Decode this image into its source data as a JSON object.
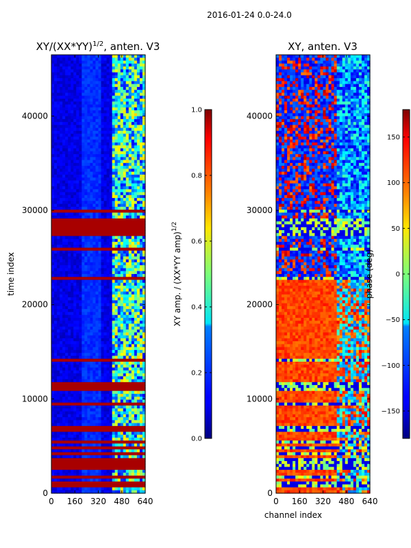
{
  "suptitle": "2016-01-24 0.0-24.0",
  "chart_data": [
    {
      "type": "heatmap",
      "title": "XY/(XX*YY)",
      "title_superscript": "1/2",
      "title_suffix": ", anten. V3",
      "xlabel": "",
      "ylabel": "time index",
      "xlim": [
        0,
        640
      ],
      "ylim": [
        0,
        46500
      ],
      "xticks": [
        0,
        160,
        320,
        480,
        640
      ],
      "yticks": [
        0,
        10000,
        20000,
        30000,
        40000
      ],
      "colormap": "jet",
      "colorbar": {
        "label": "XY amp. / (XX*YY amp)",
        "label_superscript": "1/2",
        "range": [
          0.0,
          1.0
        ],
        "ticks": [
          "0.0",
          "0.2",
          "0.4",
          "0.6",
          "0.8",
          "1.0"
        ]
      }
    },
    {
      "type": "heatmap",
      "title": "XY, anten. V3",
      "xlabel": "channel index",
      "ylabel": "",
      "xlim": [
        0,
        640
      ],
      "ylim": [
        0,
        46500
      ],
      "xticks": [
        0,
        160,
        320,
        480,
        640
      ],
      "yticks": [
        0,
        10000,
        20000,
        30000,
        40000
      ],
      "colormap": "jet",
      "colorbar": {
        "label": "phase (deg)",
        "range": [
          -180,
          180
        ],
        "ticks": [
          "−150",
          "−100",
          "−50",
          "0",
          "50",
          "100",
          "150"
        ]
      }
    }
  ]
}
